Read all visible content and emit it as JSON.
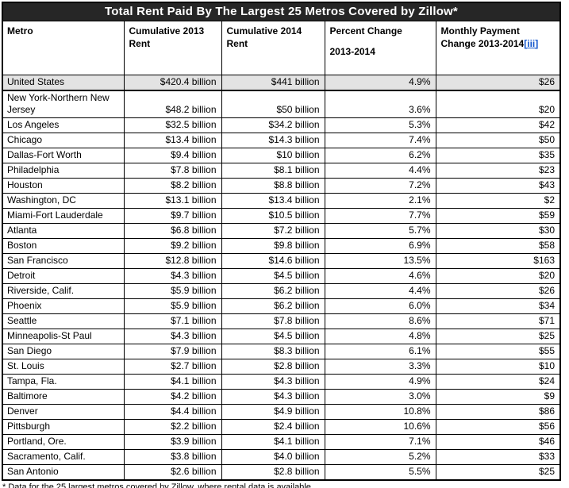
{
  "colors": {
    "title_bar_bg": "#262626",
    "title_text": "#FFFFFF",
    "highlight_row_bg": "#E3E3E3",
    "link_blue": "#1155CC",
    "border": "#000000"
  },
  "chart_data": {
    "type": "table",
    "title": "Total Rent Paid By The Largest 25 Metros Covered by Zillow*",
    "headers": {
      "metro": "Metro",
      "rent2013": "Cumulative 2013 Rent",
      "rent2014": "Cumulative 2014 Rent",
      "percent_line1": "Percent Change",
      "percent_line2": "2013-2014",
      "monthly": "Monthly Payment Change 2013-2014",
      "monthly_link": "[iii]"
    },
    "columns": [
      "Metro",
      "Cumulative 2013 Rent",
      "Cumulative 2014 Rent",
      "Percent Change 2013-2014",
      "Monthly Payment Change 2013-2014[iii]"
    ],
    "rows": [
      {
        "metro": "United States",
        "rent2013": "$420.4 billion",
        "rent2014": "$441 billion",
        "percent_change": "4.9%",
        "monthly_change": "$26",
        "highlighted": true
      },
      {
        "metro": "New York-Northern New Jersey",
        "rent2013": "$48.2 billion",
        "rent2014": "$50 billion",
        "percent_change": "3.6%",
        "monthly_change": "$20"
      },
      {
        "metro": "Los Angeles",
        "rent2013": "$32.5 billion",
        "rent2014": "$34.2 billion",
        "percent_change": "5.3%",
        "monthly_change": "$42"
      },
      {
        "metro": "Chicago",
        "rent2013": "$13.4 billion",
        "rent2014": "$14.3 billion",
        "percent_change": "7.4%",
        "monthly_change": "$50"
      },
      {
        "metro": "Dallas-Fort Worth",
        "rent2013": "$9.4 billion",
        "rent2014": "$10 billion",
        "percent_change": "6.2%",
        "monthly_change": "$35"
      },
      {
        "metro": "Philadelphia",
        "rent2013": "$7.8 billion",
        "rent2014": "$8.1 billion",
        "percent_change": "4.4%",
        "monthly_change": "$23"
      },
      {
        "metro": "Houston",
        "rent2013": "$8.2 billion",
        "rent2014": "$8.8 billion",
        "percent_change": "7.2%",
        "monthly_change": "$43"
      },
      {
        "metro": "Washington, DC",
        "rent2013": "$13.1 billion",
        "rent2014": "$13.4 billion",
        "percent_change": "2.1%",
        "monthly_change": "$2"
      },
      {
        "metro": "Miami-Fort Lauderdale",
        "rent2013": "$9.7 billion",
        "rent2014": "$10.5 billion",
        "percent_change": "7.7%",
        "monthly_change": "$59"
      },
      {
        "metro": "Atlanta",
        "rent2013": "$6.8 billion",
        "rent2014": "$7.2 billion",
        "percent_change": "5.7%",
        "monthly_change": "$30"
      },
      {
        "metro": "Boston",
        "rent2013": "$9.2 billion",
        "rent2014": "$9.8 billion",
        "percent_change": "6.9%",
        "monthly_change": "$58"
      },
      {
        "metro": "San Francisco",
        "rent2013": "$12.8 billion",
        "rent2014": "$14.6 billion",
        "percent_change": "13.5%",
        "monthly_change": "$163"
      },
      {
        "metro": "Detroit",
        "rent2013": "$4.3 billion",
        "rent2014": "$4.5 billion",
        "percent_change": "4.6%",
        "monthly_change": "$20"
      },
      {
        "metro": "Riverside, Calif.",
        "rent2013": "$5.9 billion",
        "rent2014": "$6.2 billion",
        "percent_change": "4.4%",
        "monthly_change": "$26"
      },
      {
        "metro": "Phoenix",
        "rent2013": "$5.9 billion",
        "rent2014": "$6.2 billion",
        "percent_change": "6.0%",
        "monthly_change": "$34"
      },
      {
        "metro": "Seattle",
        "rent2013": "$7.1 billion",
        "rent2014": "$7.8 billion",
        "percent_change": "8.6%",
        "monthly_change": "$71"
      },
      {
        "metro": "Minneapolis-St Paul",
        "rent2013": "$4.3 billion",
        "rent2014": "$4.5 billion",
        "percent_change": "4.8%",
        "monthly_change": "$25"
      },
      {
        "metro": "San Diego",
        "rent2013": "$7.9 billion",
        "rent2014": "$8.3 billion",
        "percent_change": "6.1%",
        "monthly_change": "$55"
      },
      {
        "metro": "St. Louis",
        "rent2013": "$2.7 billion",
        "rent2014": "$2.8 billion",
        "percent_change": "3.3%",
        "monthly_change": "$10"
      },
      {
        "metro": "Tampa, Fla.",
        "rent2013": "$4.1 billion",
        "rent2014": "$4.3 billion",
        "percent_change": "4.9%",
        "monthly_change": "$24"
      },
      {
        "metro": "Baltimore",
        "rent2013": "$4.2 billion",
        "rent2014": "$4.3 billion",
        "percent_change": "3.0%",
        "monthly_change": "$9"
      },
      {
        "metro": "Denver",
        "rent2013": "$4.4 billion",
        "rent2014": "$4.9 billion",
        "percent_change": "10.8%",
        "monthly_change": "$86"
      },
      {
        "metro": "Pittsburgh",
        "rent2013": "$2.2 billion",
        "rent2014": "$2.4 billion",
        "percent_change": "10.6%",
        "monthly_change": "$56"
      },
      {
        "metro": "Portland, Ore.",
        "rent2013": "$3.9 billion",
        "rent2014": "$4.1 billion",
        "percent_change": "7.1%",
        "monthly_change": "$46"
      },
      {
        "metro": "Sacramento, Calif.",
        "rent2013": "$3.8 billion",
        "rent2014": "$4.0 billion",
        "percent_change": "5.2%",
        "monthly_change": "$33"
      },
      {
        "metro": "San Antonio",
        "rent2013": "$2.6 billion",
        "rent2014": "$2.8 billion",
        "percent_change": "5.5%",
        "monthly_change": "$25"
      }
    ],
    "footnote": "* Data for the 25 largest metros covered by Zillow, where rental data is available"
  }
}
